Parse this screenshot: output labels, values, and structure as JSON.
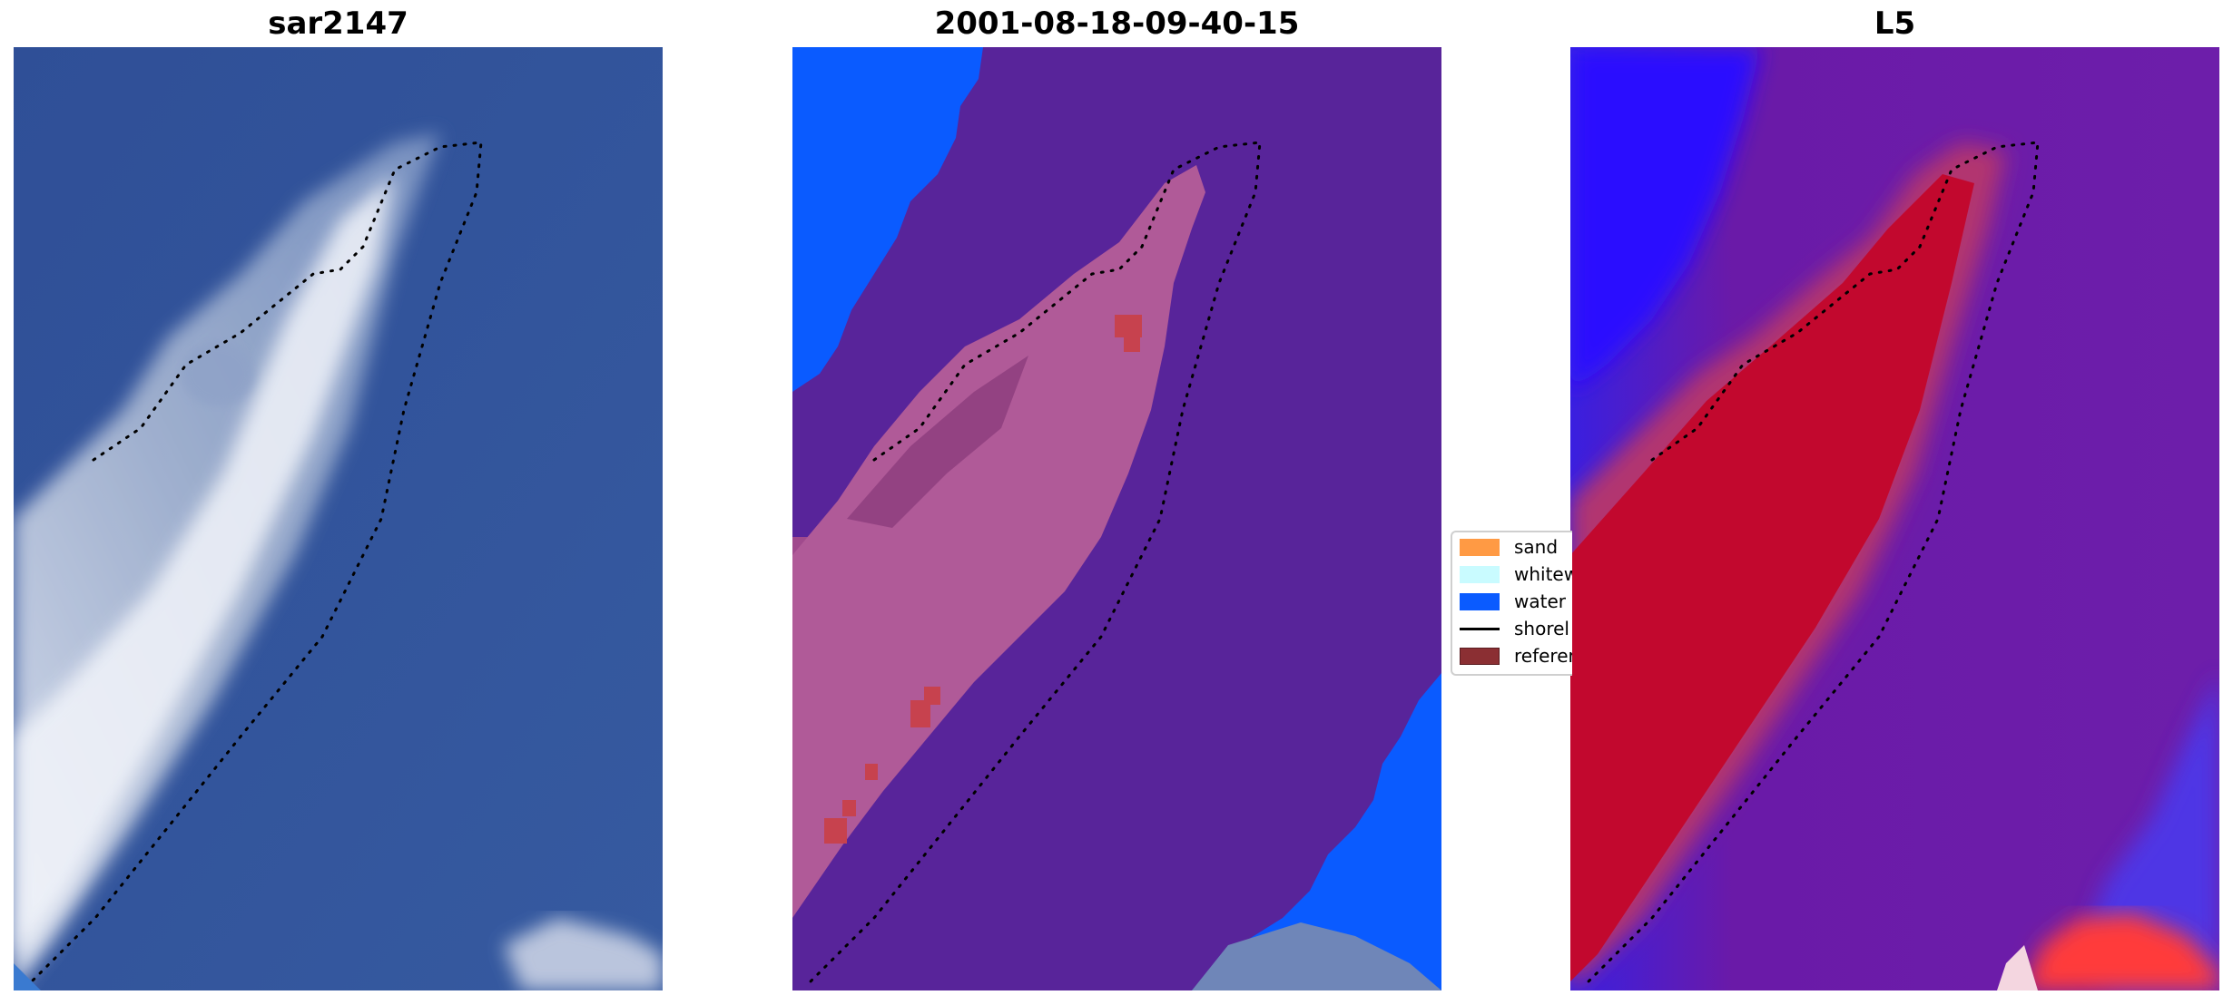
{
  "panels": [
    {
      "title": "sar2147",
      "kind": "rgb-image"
    },
    {
      "title": "2001-08-18-09-40-15",
      "kind": "classified-image"
    },
    {
      "title": "L5",
      "kind": "index-image"
    }
  ],
  "legend": {
    "items": [
      {
        "label": "sand",
        "color": "#ff9a44",
        "type": "patch"
      },
      {
        "label": "whitew",
        "color": "#c9fbff",
        "type": "patch"
      },
      {
        "label": "water",
        "color": "#0a5bff",
        "type": "patch"
      },
      {
        "label": "shorel",
        "color": "#000000",
        "type": "line"
      },
      {
        "label": "referer",
        "color": "#8b2f33",
        "type": "patch"
      }
    ]
  },
  "colors": {
    "sea_rgb": "#35569a",
    "water_class": "#0a5bff",
    "other_class": "#58249a",
    "sand_overlay": "#b05a98",
    "index_low": "#2a10ff",
    "index_mid": "#6a1aa8",
    "index_high": "#c2082e",
    "shoreline": "#000000"
  }
}
